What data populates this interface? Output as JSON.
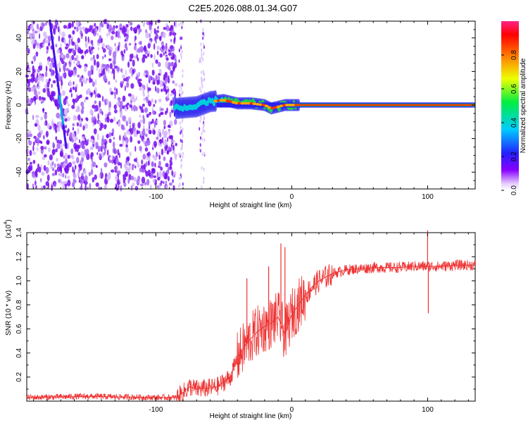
{
  "title": "C2E5.2026.088.01.34.G07",
  "chart_data": [
    {
      "type": "heatmap",
      "title": "C2E5.2026.088.01.34.G07",
      "xlabel": "Height of straight line (km)",
      "ylabel": "Frequency (Hz)",
      "xlim": [
        -195,
        135
      ],
      "ylim": [
        -50,
        50
      ],
      "x_ticks": [
        -100,
        0,
        100
      ],
      "x_tick_labels": [
        "-100",
        "0",
        "100"
      ],
      "y_ticks": [
        -40,
        -20,
        0,
        20,
        40
      ],
      "y_tick_labels": [
        "-40",
        "-20",
        "0",
        "20",
        "40"
      ],
      "colorbar": {
        "label": "Normalized spectral amplitude",
        "range": [
          0,
          1
        ],
        "ticks": [
          0.0,
          0.2,
          0.4,
          0.6,
          0.8
        ],
        "tick_labels": [
          "0.0",
          "0.2",
          "0.4",
          "0.6",
          "0.8"
        ]
      },
      "features": {
        "noise_region_x": [
          -195,
          -85
        ],
        "drifting_line": {
          "x": [
            -178,
            -166
          ],
          "freq": [
            50,
            -25
          ]
        },
        "carrier_track": [
          {
            "x": -85,
            "freq": -2
          },
          {
            "x": -70,
            "freq": -1
          },
          {
            "x": -60,
            "freq": 2
          },
          {
            "x": -50,
            "freq": 3
          },
          {
            "x": -40,
            "freq": 1
          },
          {
            "x": -30,
            "freq": 1
          },
          {
            "x": -20,
            "freq": 0
          },
          {
            "x": -15,
            "freq": -2
          },
          {
            "x": -5,
            "freq": 0
          },
          {
            "x": 10,
            "freq": 0
          },
          {
            "x": 135,
            "freq": 0
          }
        ]
      }
    },
    {
      "type": "line",
      "xlabel": "Height of straight line (km)",
      "ylabel": "SNR (10 * v/v)",
      "y_multiplier": "(x10",
      "y_multiplier_exp": "4",
      "y_multiplier_close": ")",
      "xlim": [
        -195,
        135
      ],
      "ylim": [
        0,
        1.4
      ],
      "x_ticks": [
        -100,
        0,
        100
      ],
      "x_tick_labels": [
        "-100",
        "0",
        "100"
      ],
      "y_ticks": [
        0.2,
        0.4,
        0.6,
        0.8,
        1.0,
        1.2,
        1.4
      ],
      "y_tick_labels": [
        "0.2",
        "0.4",
        "0.6",
        "0.8",
        "1.0",
        "1.2",
        "1.4"
      ],
      "color": "#ee3333",
      "series": [
        {
          "name": "SNR",
          "x": [
            -195,
            -150,
            -100,
            -85,
            -80,
            -75,
            -70,
            -60,
            -55,
            -45,
            -40,
            -35,
            -30,
            -25,
            -20,
            -15,
            -10,
            -5,
            0,
            5,
            10,
            15,
            20,
            30,
            40,
            50,
            60,
            70,
            80,
            90,
            100,
            110,
            120,
            135
          ],
          "values": [
            0.03,
            0.04,
            0.03,
            0.03,
            0.07,
            0.12,
            0.1,
            0.11,
            0.12,
            0.2,
            0.36,
            0.45,
            0.52,
            0.58,
            0.62,
            0.65,
            0.7,
            0.55,
            0.72,
            0.8,
            0.88,
            0.95,
            1.0,
            1.06,
            1.09,
            1.1,
            1.11,
            1.11,
            1.11,
            1.12,
            1.12,
            1.12,
            1.13,
            1.13
          ]
        }
      ],
      "spikes": [
        {
          "x": -33,
          "value": 1.02
        },
        {
          "x": -17,
          "value": 1.12
        },
        {
          "x": -8,
          "value": 1.31
        },
        {
          "x": -5,
          "value": 1.28
        },
        {
          "x": 100,
          "value": 1.42
        },
        {
          "x": 100.5,
          "value": 0.73
        }
      ]
    }
  ]
}
